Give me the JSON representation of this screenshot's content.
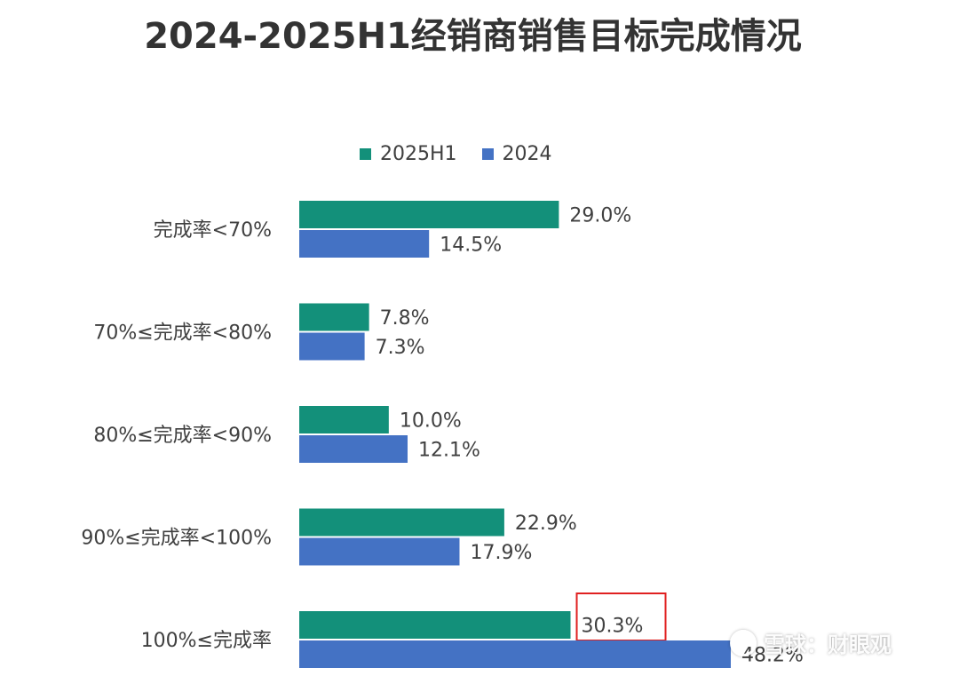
{
  "watermark": {
    "text": "雪球：财眼观",
    "icon": "snowball-logo-icon"
  },
  "highlight": {
    "color": "#e02020",
    "category_index": 4,
    "series_index": 0
  },
  "chart_data": {
    "type": "bar",
    "orientation": "horizontal",
    "title": "2024-2025H1经销商销售目标完成情况",
    "categories": [
      "完成率<70%",
      "70%≤完成率<80%",
      "80%≤完成率<90%",
      "90%≤完成率<100%",
      "100%≤完成率"
    ],
    "series": [
      {
        "name": "2025H1",
        "color": "#13907a",
        "values": [
          29.0,
          7.8,
          10.0,
          22.9,
          30.3
        ],
        "labels": [
          "29.0%",
          "7.8%",
          "10.0%",
          "22.9%",
          "30.3%"
        ]
      },
      {
        "name": "2024",
        "color": "#4472c4",
        "values": [
          14.5,
          7.3,
          12.1,
          17.9,
          48.2
        ],
        "labels": [
          "14.5%",
          "7.3%",
          "12.1%",
          "17.9%",
          "48.2%"
        ]
      }
    ],
    "xlim": [
      0,
      48.2
    ],
    "legend_position": "top",
    "grid": false,
    "xaxis_visible": false
  }
}
